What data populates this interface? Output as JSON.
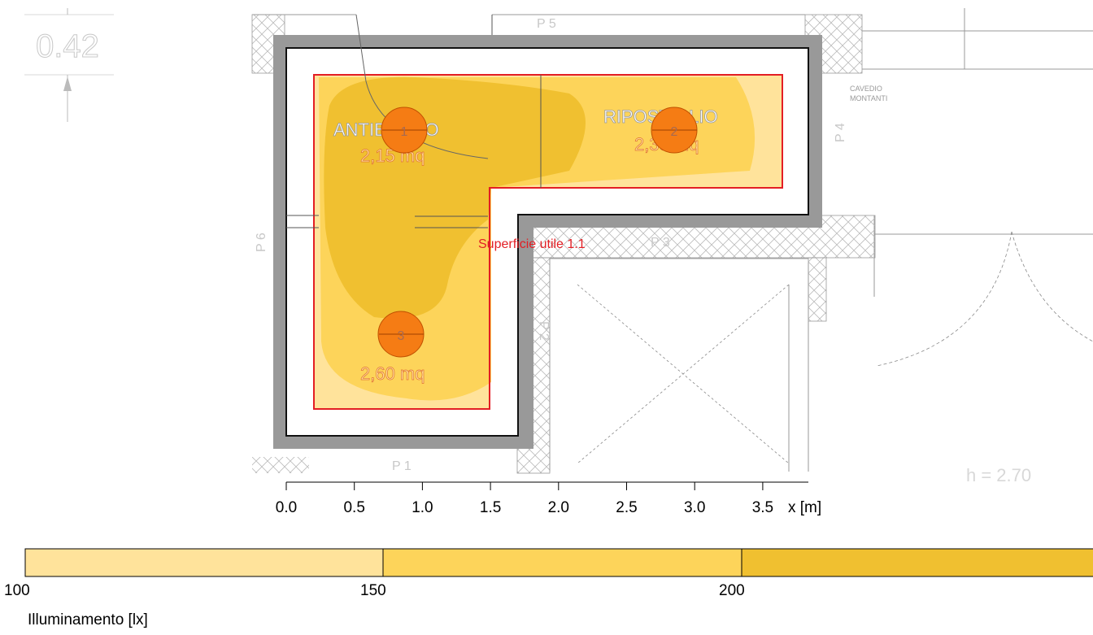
{
  "drawing": {
    "dimension_value": "0.42",
    "right_edge_text": "h = 2.70",
    "cavedio_line1": "CAVEDIO",
    "cavedio_line2": "MONTANTI",
    "wall_labels": {
      "p1": "P 1",
      "p2": "P 2",
      "p3": "P 3",
      "p4": "P 4",
      "p5": "P 5",
      "p6": "P 6"
    },
    "rooms": [
      {
        "name": "ANTIBAGNO",
        "area": "2,15 mq"
      },
      {
        "name": "RIPOSTIGLIO",
        "area": "2,38 mq"
      },
      {
        "name": "",
        "area": "2,60 mq"
      }
    ],
    "surface_label": "Superficie utile 1.1",
    "luminaires": [
      "1",
      "2",
      "3"
    ]
  },
  "axis": {
    "ticks": [
      "0.0",
      "0.5",
      "1.0",
      "1.5",
      "2.0",
      "2.5",
      "3.0",
      "3.5"
    ],
    "label": "x [m]"
  },
  "legend": {
    "title": "Illuminamento [lx]",
    "values": [
      "100",
      "150",
      "200"
    ],
    "colors": [
      "#ffe39b",
      "#fdd45a",
      "#f0c030"
    ]
  }
}
